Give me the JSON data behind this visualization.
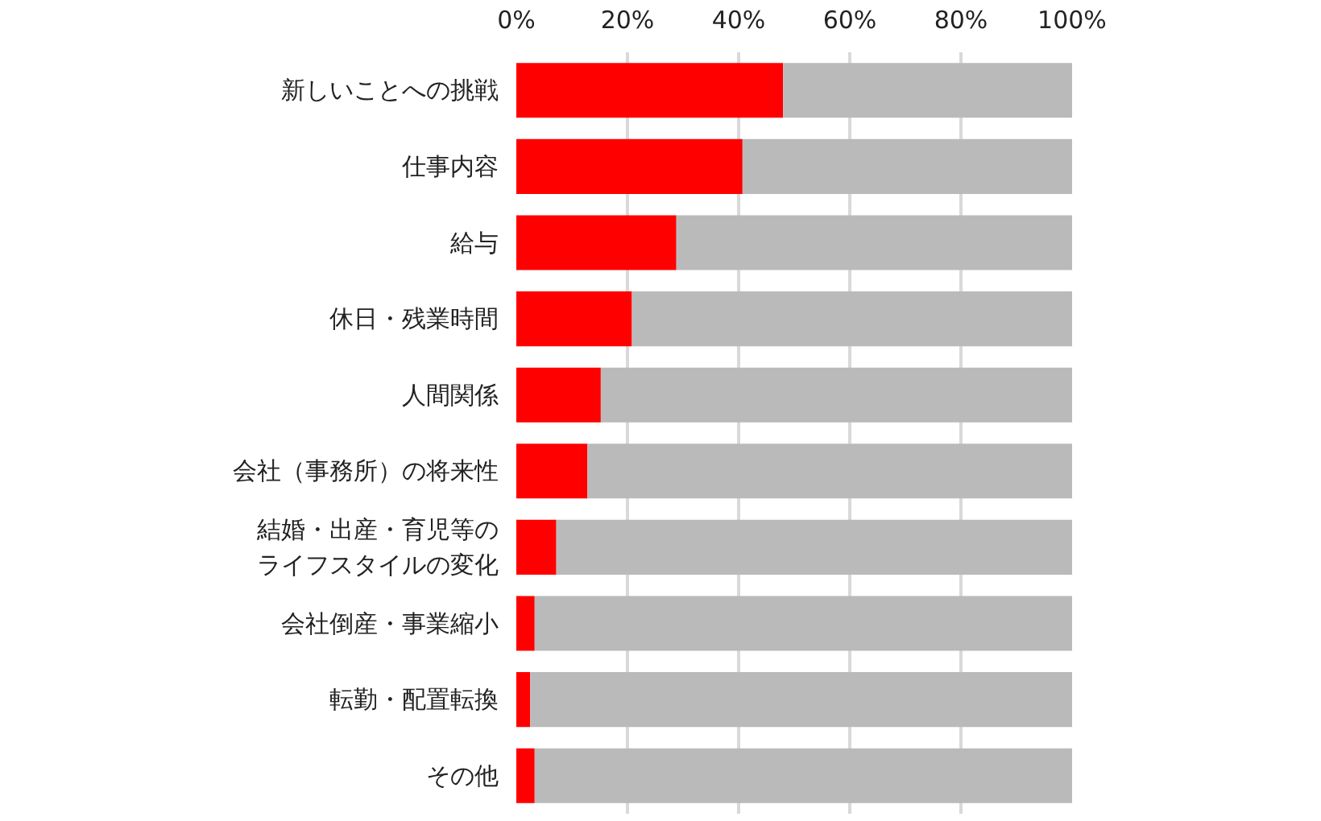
{
  "chart_data": {
    "type": "bar",
    "orientation": "horizontal",
    "stacked": true,
    "categories": [
      "新しいことへの挑戦",
      "仕事内容",
      "給与",
      "休日・残業時間",
      "人間関係",
      "会社（事務所）の将来性",
      "結婚・出産・育児等のライフスタイルの変化",
      "会社倒産・事業縮小",
      "転勤・配置転換",
      "その他"
    ],
    "series": [
      {
        "color": "#ff0000",
        "values": [
          48.0,
          40.7,
          28.8,
          20.8,
          15.2,
          12.8,
          7.2,
          3.3,
          2.5,
          3.3
        ]
      },
      {
        "color": "#bababa",
        "values": [
          52.0,
          59.3,
          71.2,
          79.2,
          84.8,
          87.2,
          92.8,
          96.7,
          97.5,
          96.7
        ]
      }
    ],
    "xlim": [
      0,
      100
    ],
    "xticks": [
      {
        "value": 0,
        "label": "0%"
      },
      {
        "value": 20,
        "label": "20%"
      },
      {
        "value": 40,
        "label": "40%"
      },
      {
        "value": 60,
        "label": "60%"
      },
      {
        "value": 80,
        "label": "80%"
      },
      {
        "value": 100,
        "label": "100%"
      }
    ],
    "grid": "x"
  }
}
